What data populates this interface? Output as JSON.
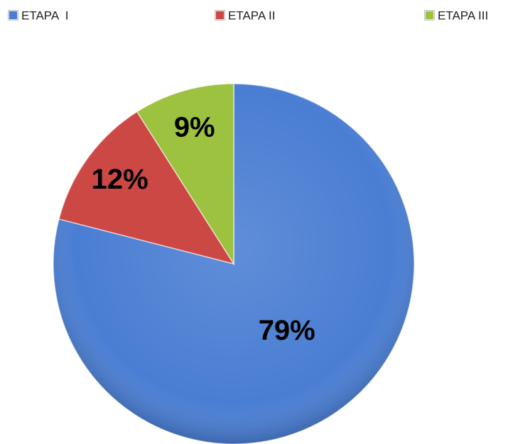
{
  "chart_data": {
    "type": "pie",
    "categories": [
      "ETAPA  I",
      "ETAPA II",
      "ETAPA III"
    ],
    "values": [
      79,
      12,
      9
    ],
    "value_labels": [
      "79%",
      "12%",
      "9%"
    ],
    "colors": [
      "#4a7ed3",
      "#cc4845",
      "#9cc23f"
    ],
    "legend": "top"
  }
}
